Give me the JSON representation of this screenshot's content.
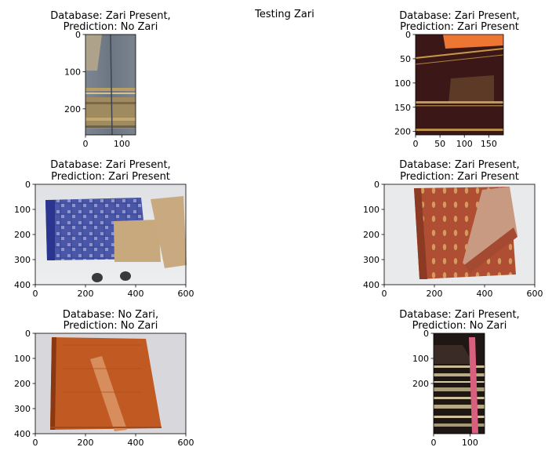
{
  "figure": {
    "suptitle": "Testing Zari"
  },
  "chart_data": [
    {
      "type": "image",
      "title": [
        "Database: Zari Present,",
        "Prediction: No Zari"
      ],
      "xlim": [
        0,
        138
      ],
      "ylim": [
        270,
        0
      ],
      "xticks": [
        0,
        100
      ],
      "yticks": [
        0,
        100,
        200
      ],
      "content": "folded grey-blue saree with gold zari border stripes"
    },
    {
      "type": "image",
      "title": [
        "Database: Zari Present,",
        "Prediction: Zari Present"
      ],
      "xlim": [
        0,
        180
      ],
      "ylim": [
        207,
        0
      ],
      "xticks": [
        0,
        50,
        100,
        150
      ],
      "yticks": [
        0,
        50,
        100,
        150,
        200
      ],
      "content": "dark maroon saree with orange corner and gold zari lines"
    },
    {
      "type": "image",
      "title": [
        "Database: Zari Present,",
        "Prediction: Zari Present"
      ],
      "xlim": [
        0,
        600
      ],
      "ylim": [
        400,
        0
      ],
      "xticks": [
        0,
        200,
        400,
        600
      ],
      "yticks": [
        0,
        100,
        200,
        300,
        400
      ],
      "content": "blue patterned saree with beige body on white floor"
    },
    {
      "type": "image",
      "title": [
        "Database: Zari Present,",
        "Prediction: Zari Present"
      ],
      "xlim": [
        0,
        600
      ],
      "ylim": [
        400,
        0
      ],
      "xticks": [
        0,
        200,
        400,
        600
      ],
      "yticks": [
        0,
        100,
        200,
        300,
        400
      ],
      "content": "rust red saree with gold zari motifs on white floor"
    },
    {
      "type": "image",
      "title": [
        "Database: No Zari,",
        "Prediction: No Zari"
      ],
      "xlim": [
        0,
        600
      ],
      "ylim": [
        400,
        0
      ],
      "xticks": [
        0,
        200,
        400,
        600
      ],
      "yticks": [
        0,
        100,
        200,
        300,
        400
      ],
      "content": "plain orange saree on grey-white background"
    },
    {
      "type": "image",
      "title": [
        "Database: Zari Present,",
        "Prediction: No Zari"
      ],
      "xlim": [
        0,
        140
      ],
      "ylim": [
        400,
        0
      ],
      "xticks": [
        0,
        100
      ],
      "yticks": [
        0,
        100,
        200
      ],
      "content": "black saree with pink border and cream stripes"
    }
  ]
}
